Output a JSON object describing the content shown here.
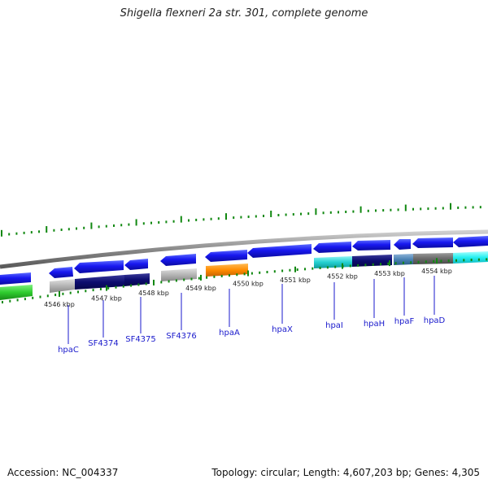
{
  "title": "Shigella flexneri 2a str. 301, complete genome",
  "footer": {
    "accession": "Accession: NC_004337",
    "summary": "Topology: circular; Length: 4,607,203 bp; Genes: 4,305"
  },
  "colors": {
    "backbone": "#7a7a7a",
    "gc_dots": "#118811",
    "ticks": "#118811",
    "label_lines": "#1a1acc",
    "label_text": "#1a1acc"
  },
  "scale_ticks": [
    "4546 kbp",
    "4547 kbp",
    "4548 kbp",
    "4549 kbp",
    "4550 kbp",
    "4551 kbp",
    "4552 kbp",
    "4553 kbp",
    "4554 kbp"
  ],
  "gene_labels": [
    "hpaC",
    "SF4374",
    "SF4375",
    "SF4376",
    "hpaA",
    "hpaX",
    "hpaI",
    "hpaH",
    "hpaF",
    "hpaD"
  ]
}
